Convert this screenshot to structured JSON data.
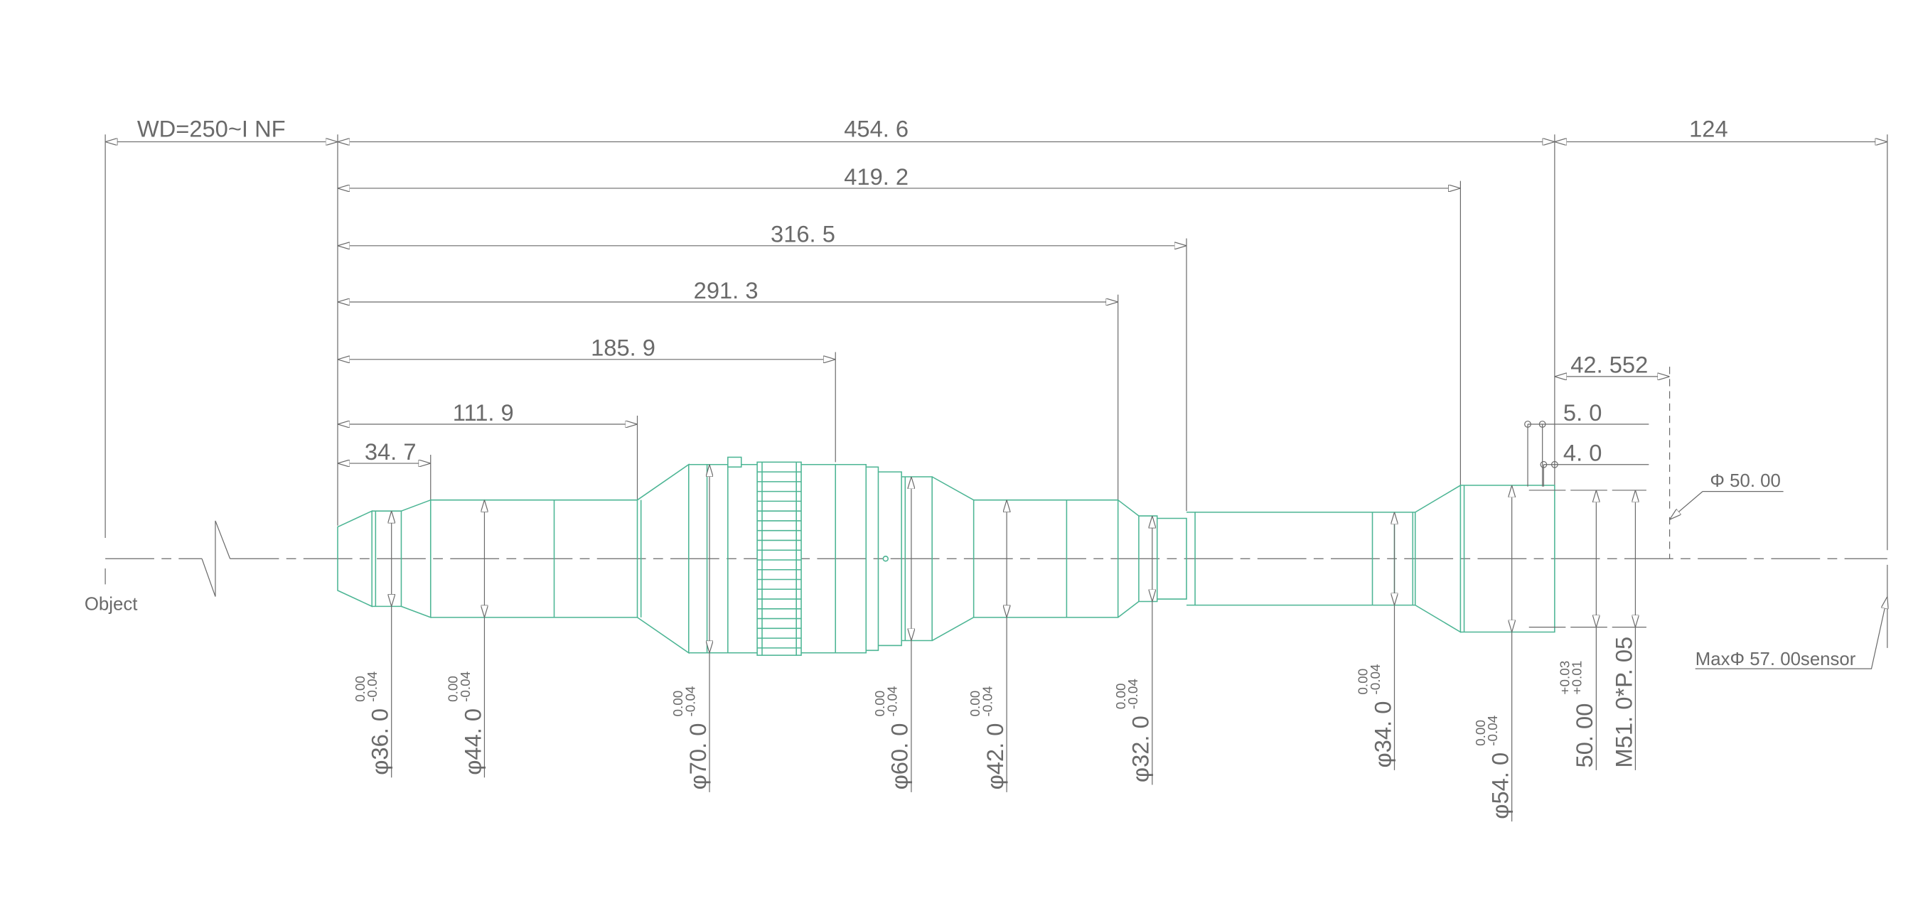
{
  "colors": {
    "lens": "#4cb594",
    "dimension": "#6a6a6a"
  },
  "labels": {
    "object": "Object",
    "sensor": "MaxΦ 57. 00sensor",
    "flange_dia": "Φ 50. 00"
  },
  "horizontal_dims": {
    "wd": "WD=250~I NF",
    "total": "454. 6",
    "back": "124",
    "d419": "419. 2",
    "d316": "316. 5",
    "d291": "291. 3",
    "d185": "185. 9",
    "d111": "111. 9",
    "d34": "34. 7",
    "d42": "42. 552",
    "d5": "5. 0",
    "d4": "4. 0"
  },
  "diameters": [
    {
      "label": "φ36. 0",
      "upper": "0.00",
      "lower": "-0.04"
    },
    {
      "label": "φ44. 0",
      "upper": "0.00",
      "lower": "-0.04"
    },
    {
      "label": "φ70. 0",
      "upper": "0.00",
      "lower": "-0.04"
    },
    {
      "label": "φ60. 0",
      "upper": "0.00",
      "lower": "-0.04"
    },
    {
      "label": "φ42. 0",
      "upper": "0.00",
      "lower": "-0.04"
    },
    {
      "label": "φ32. 0",
      "upper": "0.00",
      "lower": "-0.04"
    },
    {
      "label": "φ34. 0",
      "upper": "0.00",
      "lower": "-0.04"
    },
    {
      "label": "φ54. 0",
      "upper": "0.00",
      "lower": "-0.04"
    },
    {
      "label": "50. 00",
      "upper": "+0.03",
      "lower": "+0.01"
    },
    {
      "label": "M51. 0*P. 05",
      "upper": "",
      "lower": ""
    }
  ]
}
